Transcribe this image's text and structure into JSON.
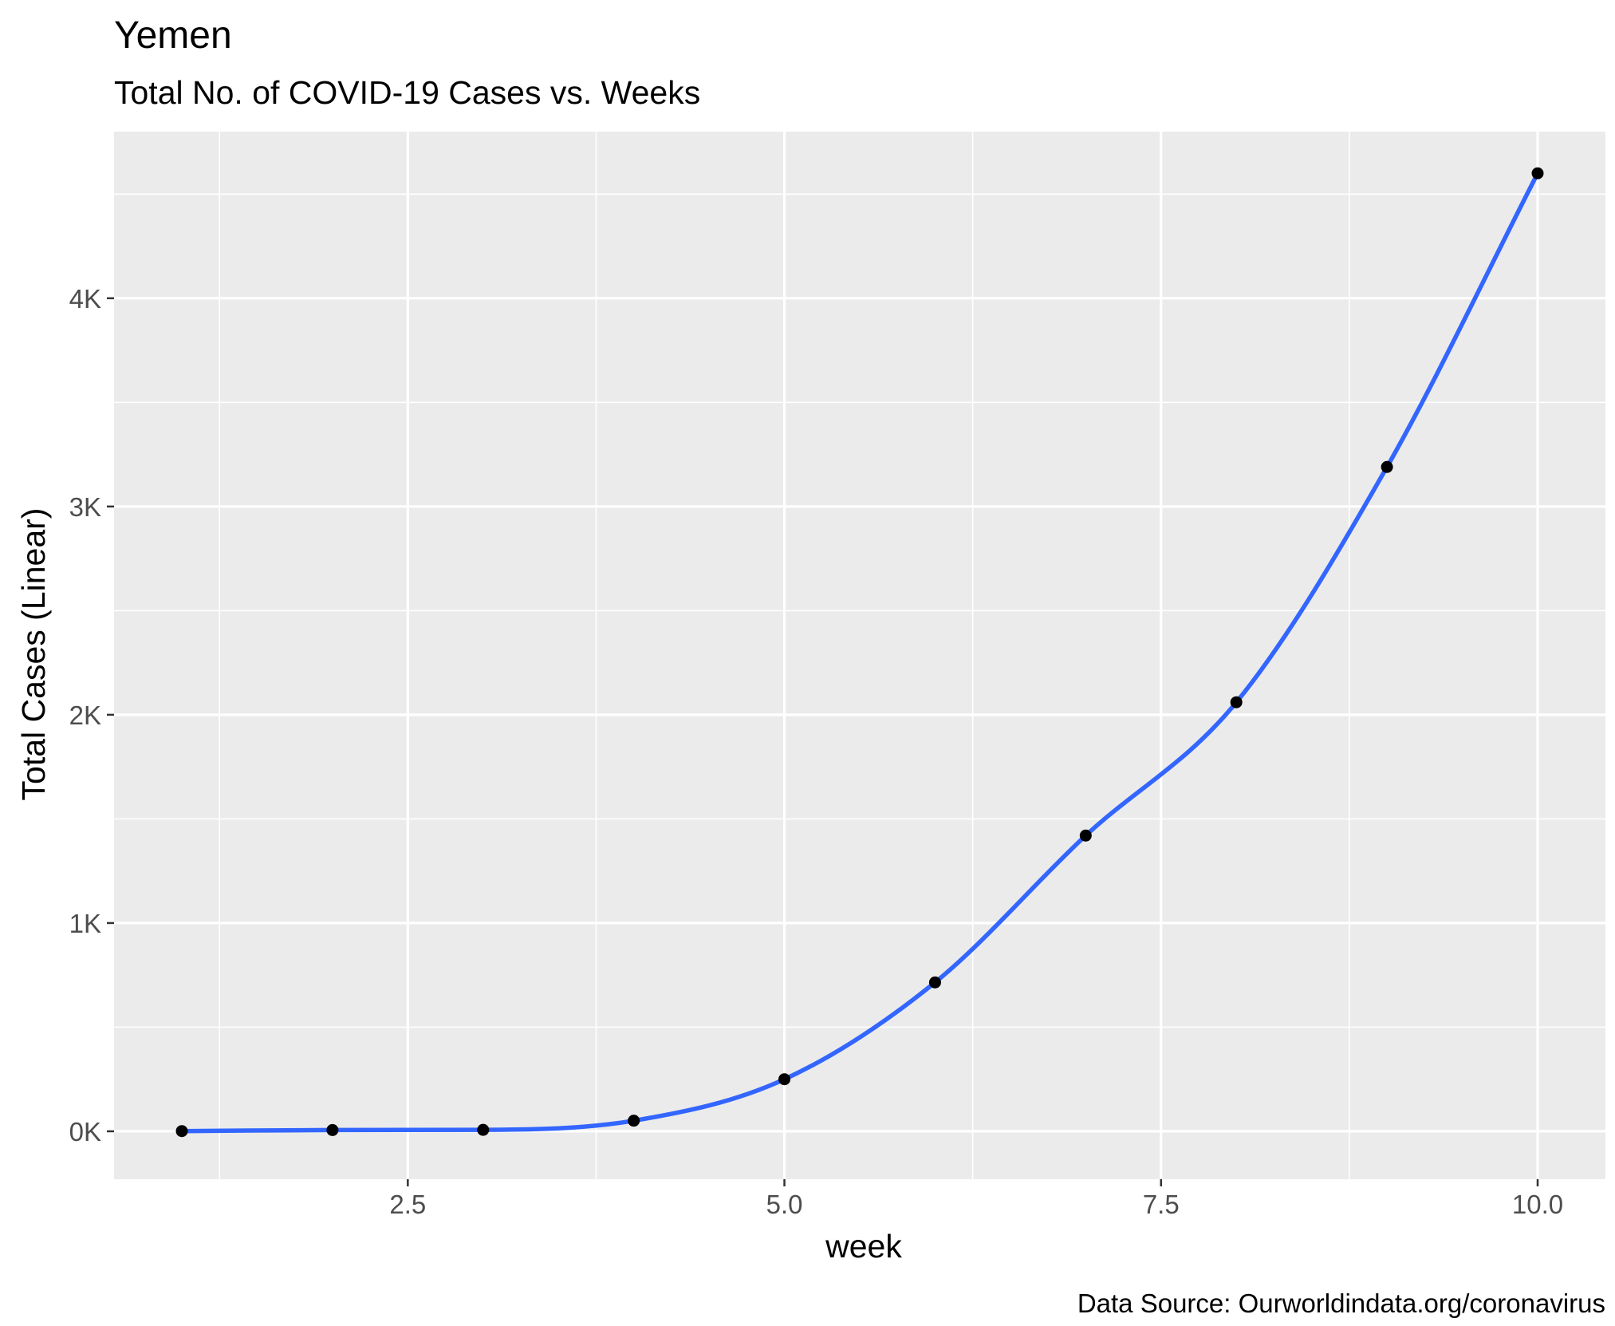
{
  "chart_data": {
    "type": "line",
    "title": "Yemen",
    "subtitle": "Total No. of COVID-19 Cases vs. Weeks",
    "xlabel": "week",
    "ylabel": "Total Cases (Linear)",
    "caption": "Data Source: Ourworldindata.org/coronavirus",
    "xlim": [
      0.55,
      10.45
    ],
    "ylim": [
      -230,
      4800
    ],
    "x_ticks": [
      2.5,
      5.0,
      7.5,
      10.0
    ],
    "x_tick_labels": [
      "2.5",
      "5.0",
      "7.5",
      "10.0"
    ],
    "y_ticks": [
      0,
      1000,
      2000,
      3000,
      4000
    ],
    "y_tick_labels": [
      "0K",
      "1K",
      "2K",
      "3K",
      "4K"
    ],
    "grid": true,
    "series": [
      {
        "x": [
          1,
          2,
          3,
          4,
          5,
          6,
          7,
          8,
          9,
          10
        ],
        "y": [
          1,
          6,
          7,
          51,
          250,
          715,
          1420,
          2060,
          3190,
          4600
        ]
      }
    ],
    "colors": {
      "panel": "#ebebeb",
      "grid": "#ffffff",
      "line": "#3366ff",
      "points": "#000000",
      "tick": "#333333"
    }
  }
}
